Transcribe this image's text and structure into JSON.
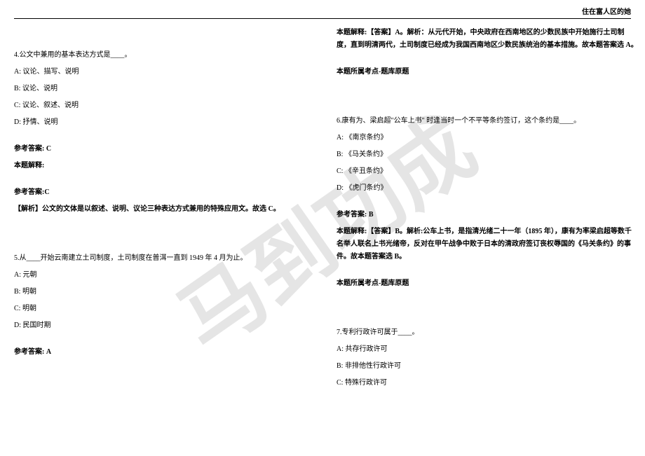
{
  "header_right": "住在富人区的她",
  "watermark_text": "马到功成",
  "left": {
    "q4": {
      "stem": "4.公文中兼用的基本表达方式是____。",
      "optA": "A: 议论、描写、说明",
      "optB": "B: 议论、说明",
      "optC": "C: 议论、叙述、说明",
      "optD": "D: 抒情、说明",
      "ans_label": "参考答案: C",
      "explain_label": "本题解释:",
      "ans_again": "参考答案:C",
      "explain": "【解析】公文的文体是以叙述、说明、议论三种表达方式兼用的特殊应用文。故选 C。"
    },
    "q5": {
      "stem": "5.从____开始云南建立土司制度，土司制度在普洱一直到 1949 年 4 月为止。",
      "optA": "A: 元朝",
      "optB": "B: 明朝",
      "optC": "C: 明朝",
      "optD": "D: 民国时期",
      "ans_label": "参考答案: A"
    }
  },
  "right": {
    "q5cont": {
      "explain": "本题解释:【答案】A。解析：从元代开始，中央政府在西南地区的少数民族中开始施行土司制度，直到明清两代，土司制度已经成为我国西南地区少数民族统治的基本措施。故本题答案选 A。",
      "point": "本题所属考点-题库原题"
    },
    "q6": {
      "stem": "6.康有为、梁启超\"公车上书\" 时逢当时一个不平等条约签订，这个条约是____。",
      "optA": "A: 《南京条约》",
      "optB": "B: 《马关条约》",
      "optC": "C: 《辛丑条约》",
      "optD": "D: 《虎门条约》",
      "ans_label": "参考答案: B",
      "explain": "本题解释:【答案】B。解析:公车上书，是指清光绪二十一年（1895 年），康有为率梁启超等数千名举人联名上书光绪帝，反对在甲午战争中败于日本的清政府签订丧权辱国的《马关条约》的事件。故本题答案选 B。",
      "point": "本题所属考点-题库原题"
    },
    "q7": {
      "stem": "7.专利行政许可属于____。",
      "optA": "A: 共存行政许可",
      "optB": "B: 非排他性行政许可",
      "optC": "C: 特殊行政许可"
    }
  }
}
